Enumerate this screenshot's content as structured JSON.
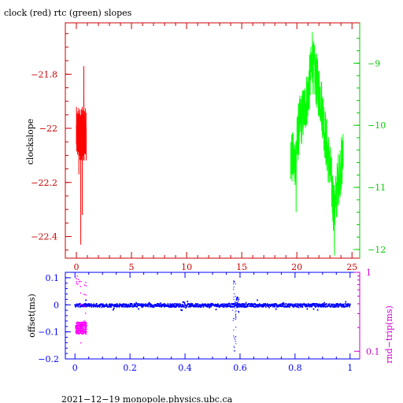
{
  "chart_data": [
    {
      "type": "line",
      "title": "clock (red) rtc (green) slopes",
      "ylabel": "clockslope",
      "x_ticks": [
        "0",
        "5",
        "10",
        "15",
        "20",
        "25"
      ],
      "xlim": [
        -1.0,
        25.7
      ],
      "y_left_ticks": [
        "−21.8",
        "−22",
        "−22.2",
        "−22.4"
      ],
      "y_left_tick_values": [
        -21.8,
        -22.0,
        -22.2,
        -22.4
      ],
      "y_left_lim": [
        -22.48,
        -21.61
      ],
      "y_right_ticks": [
        "−9",
        "−10",
        "−11",
        "−12"
      ],
      "y_right_tick_values": [
        -9,
        -10,
        -11,
        -12
      ],
      "y_right_lim": [
        -12.14,
        -8.35
      ],
      "series": [
        {
          "color": "#ff0000",
          "axis": "left",
          "x_range": [
            0.0,
            0.9
          ],
          "y_range": [
            -22.43,
            -21.77
          ],
          "typical": -22.02
        },
        {
          "color": "#00ff00",
          "axis": "right",
          "x_range": [
            19.4,
            24.2
          ],
          "y_range": [
            -12.1,
            -8.5
          ],
          "profile": [
            [
              19.4,
              -10.5
            ],
            [
              19.8,
              -10.6
            ],
            [
              20.2,
              -10.0
            ],
            [
              20.6,
              -9.8
            ],
            [
              21.0,
              -9.5
            ],
            [
              21.4,
              -9.0
            ],
            [
              21.8,
              -9.3
            ],
            [
              22.2,
              -9.6
            ],
            [
              22.6,
              -10.2
            ],
            [
              23.0,
              -10.7
            ],
            [
              23.4,
              -11.4
            ],
            [
              23.8,
              -10.8
            ],
            [
              24.2,
              -10.5
            ]
          ]
        }
      ],
      "colors": {
        "left_axis": "#cc0000",
        "right_axis": "#00cc00",
        "frame": "#cc0000"
      }
    },
    {
      "type": "scatter",
      "ylabel_left": "offset(ms)",
      "ylabel_right": "rnd−trip(ms)",
      "x_ticks": [
        "0",
        "0.2",
        "0.4",
        "0.6",
        "0.8",
        "1"
      ],
      "xlim": [
        -0.035,
        1.035
      ],
      "y_left_ticks": [
        "0.1",
        "0",
        "−0.1",
        "−0.2"
      ],
      "y_left_tick_values": [
        0.1,
        0.0,
        -0.1,
        -0.2
      ],
      "y_left_lim": [
        -0.2,
        0.12
      ],
      "y_right_ticks": [
        "1",
        "0.1"
      ],
      "y_right_tick_values": [
        1,
        0.1
      ],
      "y_right_scale": "log",
      "y_right_lim": [
        0.08,
        1.0
      ],
      "series": [
        {
          "color": "#0000ff",
          "axis": "left",
          "x_range": [
            0.0,
            1.0
          ],
          "typical": -0.002,
          "features": [
            {
              "x": 0.578,
              "y_min": -0.19,
              "y_max": 0.09
            },
            {
              "x": 0.59,
              "y_min": -0.03,
              "y_max": 0.03
            }
          ]
        },
        {
          "color": "#ff00ff",
          "axis": "right",
          "x_range": [
            0.0,
            0.04
          ],
          "y_range": [
            0.11,
            0.95
          ],
          "typical": 0.2
        }
      ],
      "colors": {
        "left_axis": "#0000ff",
        "right_axis": "#cc00cc"
      }
    }
  ],
  "footer": "2021−12−19  monopole.physics.ubc.ca"
}
